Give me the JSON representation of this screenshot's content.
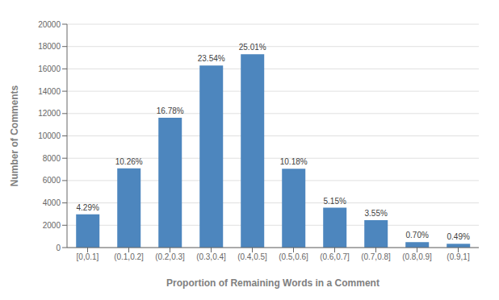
{
  "chart_data": {
    "type": "bar",
    "categories": [
      "[0,0.1]",
      "(0.1,0.2]",
      "(0.2,0.3]",
      "(0.3,0.4]",
      "(0.4,0.5]",
      "(0.5,0.6]",
      "(0.6,0.7]",
      "(0.7,0.8]",
      "(0.8,0.9]",
      "(0.9,1]"
    ],
    "values": [
      2970,
      7102,
      11617,
      16298,
      17319,
      7050,
      3567,
      2458,
      485,
      339
    ],
    "annotations": [
      "4.29%",
      "10.26%",
      "16.78%",
      "23.54%",
      "25.01%",
      "10.18%",
      "5.15%",
      "3.55%",
      "0.70%",
      "0.49%"
    ],
    "color": "#4D86BE",
    "xlabel": "Proportion of Remaining Words in a Comment",
    "ylabel": "Number of Comments",
    "ylim": [
      0,
      20000
    ],
    "yticks": [
      0,
      2000,
      4000,
      6000,
      8000,
      10000,
      12000,
      14000,
      16000,
      18000,
      20000
    ],
    "grid": true
  }
}
